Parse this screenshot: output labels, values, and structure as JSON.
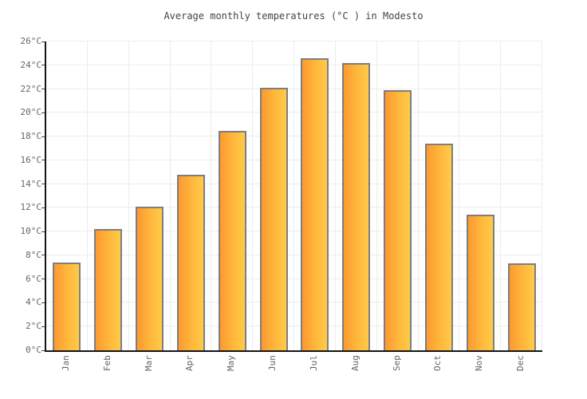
{
  "title": "Average monthly temperatures (°C ) in Modesto",
  "chart_data": {
    "type": "bar",
    "title": "Average monthly temperatures (°C ) in Modesto",
    "categories": [
      "Jan",
      "Feb",
      "Mar",
      "Apr",
      "May",
      "Jun",
      "Jul",
      "Aug",
      "Sep",
      "Oct",
      "Nov",
      "Dec"
    ],
    "values": [
      7.4,
      10.2,
      12.1,
      14.8,
      18.5,
      22.1,
      24.6,
      24.2,
      21.9,
      17.4,
      11.4,
      7.3
    ],
    "xlabel": "",
    "ylabel": "",
    "ylim": [
      0,
      26
    ],
    "ytick_step": 2,
    "ytick_suffix": "°C",
    "grid": true,
    "legend_position": "none",
    "colors": {
      "bar_gradient_left": "#fd9930",
      "bar_gradient_right": "#ffca49",
      "bar_border": "#7e7e7e",
      "grid_line": "#ececec",
      "axis_line": "#151515",
      "tick_label": "#666666",
      "title": "#444444",
      "background": "#ffffff"
    }
  }
}
